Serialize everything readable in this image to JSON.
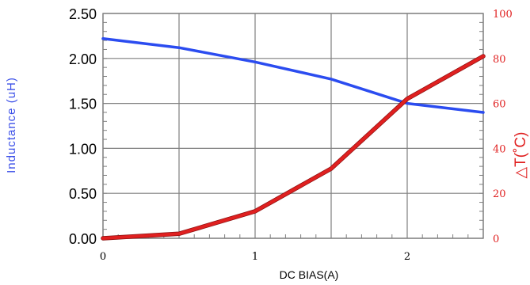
{
  "chart_data": {
    "type": "line",
    "title": "",
    "xlabel": "DC BIAS(A)",
    "ylabel": "Inductance (uH)",
    "y2label": "△T(˚C)",
    "xlim": [
      0,
      2.5
    ],
    "ylim": [
      0,
      2.5
    ],
    "y2lim": [
      0,
      100
    ],
    "grid": true,
    "x_ticks": [
      0,
      1,
      2
    ],
    "x_tick_labels": [
      "0",
      "1",
      "2"
    ],
    "y_ticks": [
      0,
      0.5,
      1.0,
      1.5,
      2.0,
      2.5
    ],
    "y_tick_labels": [
      "0.00",
      "0.50",
      "1.00",
      "1.50",
      "2.00",
      "2.50"
    ],
    "y2_ticks": [
      0,
      20,
      40,
      60,
      80,
      100
    ],
    "y2_tick_labels": [
      "0",
      "20",
      "40",
      "60",
      "80",
      "100"
    ],
    "series": [
      {
        "axis": "left",
        "color": "#2b4cf0",
        "x": [
          0,
          0.5,
          1.0,
          1.5,
          2.0,
          2.5
        ],
        "y": [
          2.22,
          2.12,
          1.96,
          1.77,
          1.5,
          1.4
        ]
      },
      {
        "axis": "right",
        "color": "#e02020",
        "x": [
          0,
          0.5,
          1.0,
          1.5,
          2.0,
          2.5
        ],
        "y": [
          0,
          2,
          12,
          31,
          62,
          81
        ]
      }
    ],
    "colors": {
      "left_axis_label": "#3b4fe8",
      "right_axis": "#e02020",
      "grid": "#7f7f7f"
    }
  }
}
